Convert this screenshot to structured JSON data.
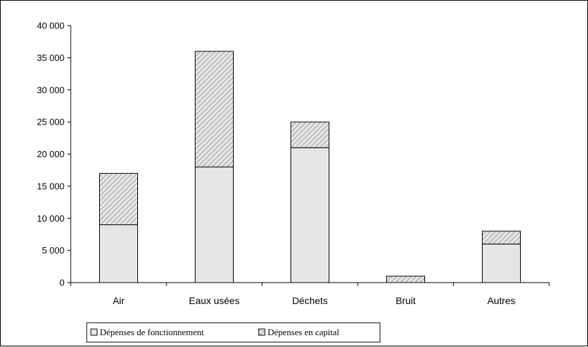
{
  "chart_data": {
    "type": "bar",
    "stacked": true,
    "title": "",
    "xlabel": "",
    "ylabel": "",
    "categories": [
      "Air",
      "Eaux usées",
      "Déchets",
      "Bruit",
      "Autres"
    ],
    "series": [
      {
        "name": "Dépenses de fonctionnement",
        "values": [
          9000,
          18000,
          21000,
          0,
          6000
        ],
        "fill": "#e6e6e6",
        "pattern": "solid"
      },
      {
        "name": "Dépenses en capital",
        "values": [
          8000,
          18000,
          4000,
          1000,
          2000
        ],
        "fill": "#e6e6e6",
        "pattern": "diagonal-hatch"
      }
    ],
    "ylim": [
      0,
      40000
    ],
    "yticks": [
      0,
      5000,
      10000,
      15000,
      20000,
      25000,
      30000,
      35000,
      40000
    ],
    "ytick_labels": [
      "0",
      "5 000",
      "10 000",
      "15 000",
      "20 000",
      "25 000",
      "30 000",
      "35 000",
      "40 000"
    ],
    "grid": false,
    "legend_position": "bottom-left"
  }
}
